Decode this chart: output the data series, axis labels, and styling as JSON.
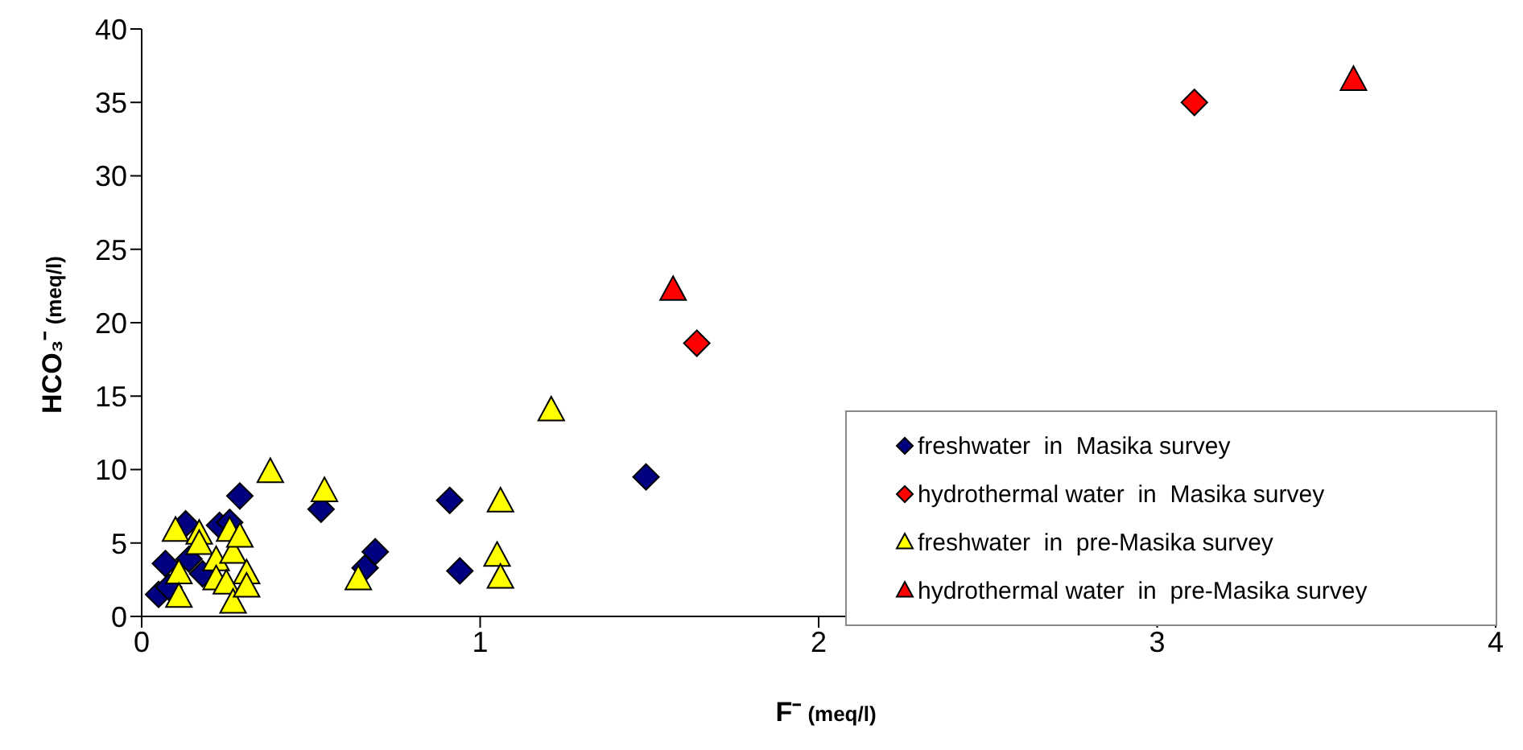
{
  "chart_data": {
    "type": "scatter",
    "xlabel": "F⁻ (meq/l)",
    "ylabel": "HCO₃⁻ (meq/l)",
    "xlim": [
      0,
      4
    ],
    "xticks": [
      0,
      1,
      2,
      3,
      4
    ],
    "ylim": [
      0,
      40
    ],
    "yticks": [
      0,
      5,
      10,
      15,
      20,
      25,
      30,
      35,
      40
    ],
    "grid": false,
    "legend": "bottom right",
    "series": [
      {
        "name": "freshwater  in  Masika survey",
        "color": "#000080",
        "marker": "diamond",
        "x": [
          0.05,
          0.07,
          0.08,
          0.13,
          0.14,
          0.18,
          0.23,
          0.26,
          0.29,
          0.53,
          0.66,
          0.69,
          0.91,
          0.94,
          1.49
        ],
        "values": [
          1.5,
          3.6,
          2.0,
          6.3,
          3.9,
          2.9,
          6.2,
          6.4,
          8.2,
          7.3,
          3.3,
          4.4,
          7.9,
          3.1,
          9.5
        ]
      },
      {
        "name": "hydrothermal water  in  Masika survey",
        "color": "#ff0000",
        "marker": "diamond",
        "x": [
          1.64,
          3.11
        ],
        "values": [
          18.6,
          35.0
        ]
      },
      {
        "name": "freshwater  in  pre-Masika survey",
        "color": "#ffff00",
        "marker": "triangle",
        "x": [
          0.1,
          0.11,
          0.11,
          0.17,
          0.17,
          0.22,
          0.22,
          0.25,
          0.26,
          0.27,
          0.29,
          0.27,
          0.31,
          0.31,
          0.38,
          0.54,
          0.64,
          1.06,
          1.05,
          1.06,
          1.21
        ],
        "values": [
          5.8,
          2.9,
          1.3,
          5.6,
          4.9,
          3.8,
          2.5,
          2.2,
          5.8,
          4.3,
          5.4,
          0.9,
          2.9,
          2.0,
          9.8,
          8.5,
          2.5,
          7.8,
          4.1,
          2.6,
          14.0
        ]
      },
      {
        "name": "hydrothermal water  in  pre-Masika survey",
        "color": "#ff0000",
        "marker": "triangle",
        "x": [
          1.57,
          3.58
        ],
        "values": [
          22.2,
          36.5
        ]
      }
    ]
  }
}
